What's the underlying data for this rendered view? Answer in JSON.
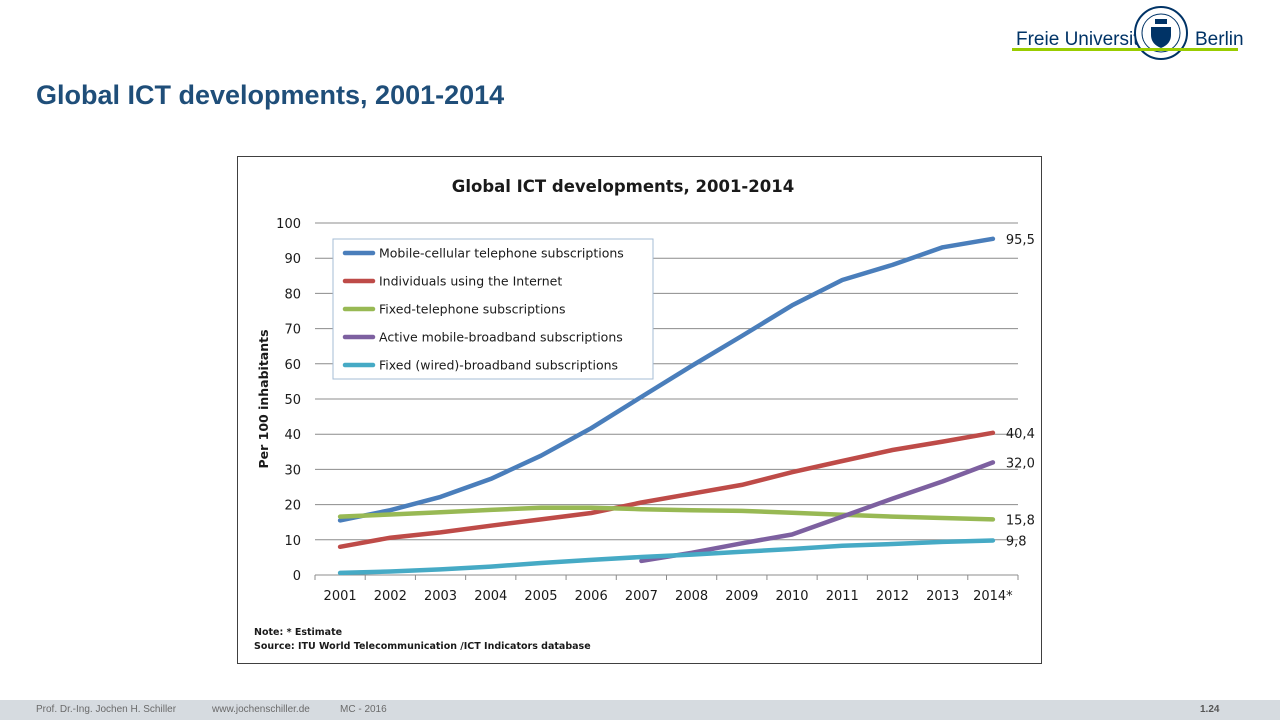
{
  "slide": {
    "title": "Global ICT developments, 2001-2014"
  },
  "logo": {
    "left_text": "Freie Universität",
    "right_text": "Berlin"
  },
  "footer": {
    "author": "Prof. Dr.-Ing. Jochen H. Schiller",
    "website": "www.jochenschiller.de",
    "course": "MC - 2016",
    "page": "1.24"
  },
  "colors": {
    "title": "#1f4e79",
    "brand_green": "#99cc00",
    "brand_blue": "#003366"
  },
  "chart_data": {
    "type": "line",
    "title": "Global ICT developments, 2001-2014",
    "ylabel": "Per 100 inhabitants",
    "xlabel": "",
    "ylim": [
      0,
      100
    ],
    "yticks": [
      0,
      10,
      20,
      30,
      40,
      50,
      60,
      70,
      80,
      90,
      100
    ],
    "grid": true,
    "legend_position": "top-left",
    "categories": [
      "2001",
      "2002",
      "2003",
      "2004",
      "2005",
      "2006",
      "2007",
      "2008",
      "2009",
      "2010",
      "2011",
      "2012",
      "2013",
      "2014*"
    ],
    "series": [
      {
        "name": "Mobile-cellular telephone subscriptions",
        "color": "#4a7ebb",
        "values": [
          15.5,
          18.4,
          22.2,
          27.3,
          33.9,
          41.7,
          50.6,
          59.4,
          67.9,
          76.6,
          83.8,
          88.1,
          93.1,
          95.5
        ],
        "end_label": "95,5"
      },
      {
        "name": "Individuals using the Internet",
        "color": "#be4b48",
        "values": [
          8.0,
          10.6,
          12.1,
          14.0,
          15.8,
          17.6,
          20.6,
          23.1,
          25.6,
          29.2,
          32.4,
          35.5,
          37.9,
          40.4
        ],
        "end_label": "40,4"
      },
      {
        "name": "Fixed-telephone subscriptions",
        "color": "#98b954",
        "values": [
          16.6,
          17.2,
          17.8,
          18.5,
          19.1,
          19.1,
          18.7,
          18.4,
          18.2,
          17.7,
          17.1,
          16.6,
          16.2,
          15.8
        ],
        "end_label": "15,8"
      },
      {
        "name": "Active mobile-broadband subscriptions",
        "color": "#7d60a0",
        "values": [
          null,
          null,
          null,
          null,
          null,
          null,
          4.0,
          6.3,
          9.0,
          11.5,
          16.6,
          21.7,
          26.6,
          32.0
        ],
        "end_label": "32,0"
      },
      {
        "name": "Fixed (wired)-broadband subscriptions",
        "color": "#46aac5",
        "values": [
          0.6,
          1.0,
          1.6,
          2.4,
          3.4,
          4.3,
          5.1,
          5.8,
          6.6,
          7.4,
          8.3,
          8.8,
          9.4,
          9.8
        ],
        "end_label": "9,8"
      }
    ],
    "notes": [
      "Note: * Estimate",
      "Source:  ITU World Telecommunication /ICT Indicators database"
    ]
  }
}
